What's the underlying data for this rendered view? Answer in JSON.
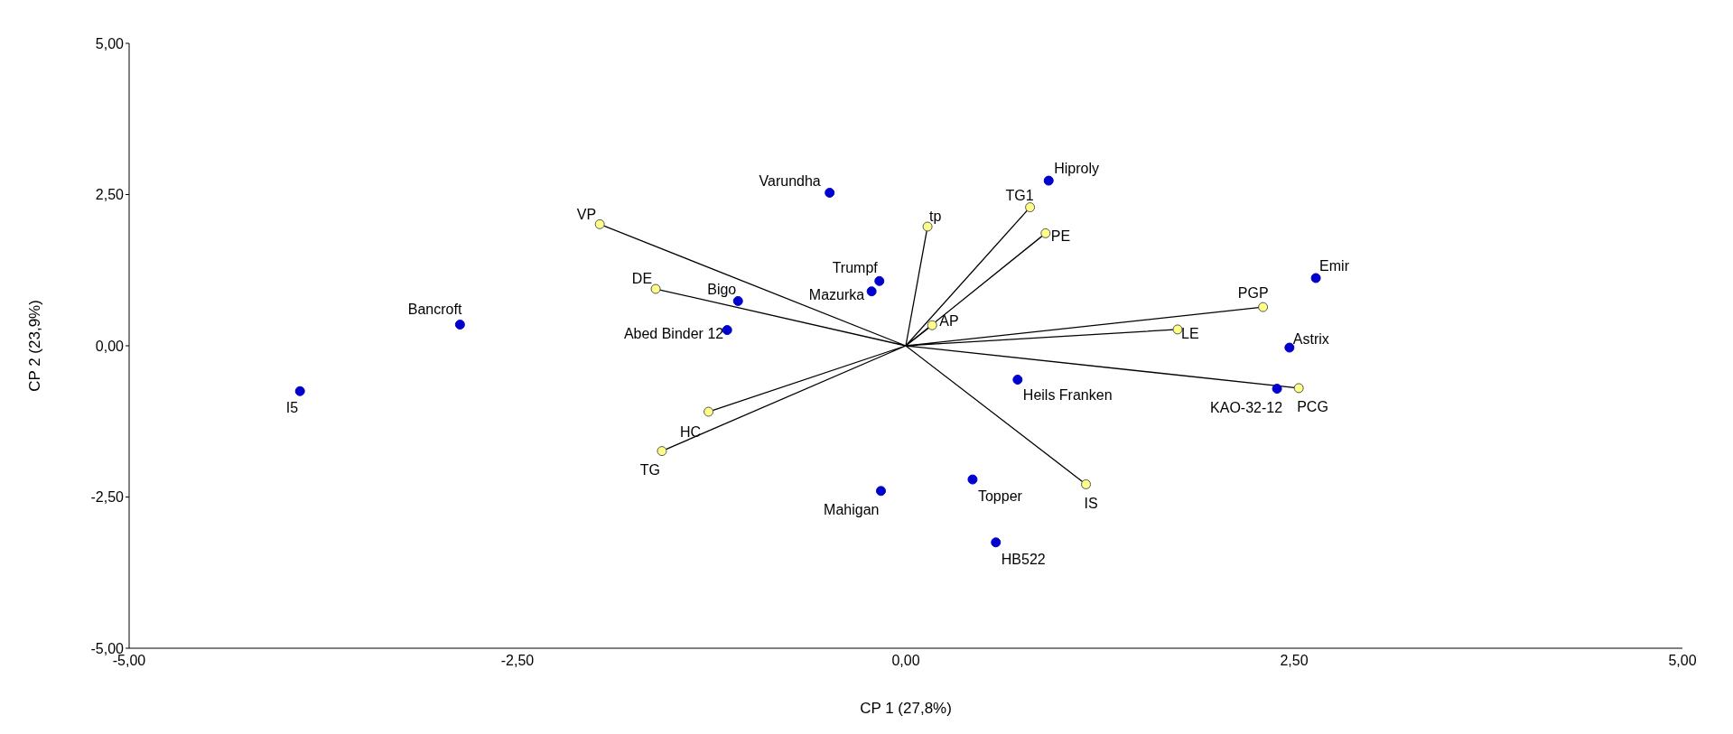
{
  "chart_data": {
    "type": "scatter",
    "xlabel": "CP 1 (27,8%)",
    "ylabel": "CP 2 (23,9%)",
    "marker": "circle",
    "xlim": [
      -5,
      5
    ],
    "ylim": [
      -5,
      5
    ],
    "xticks": [
      {
        "value": -5,
        "label": "-5,00"
      },
      {
        "value": -2.5,
        "label": "-2,50"
      },
      {
        "value": 0,
        "label": "0,00"
      },
      {
        "value": 2.5,
        "label": "2,50"
      },
      {
        "value": 5,
        "label": "5,00"
      }
    ],
    "yticks": [
      {
        "value": -5,
        "label": "-5,00"
      },
      {
        "value": -2.5,
        "label": "-2,50"
      },
      {
        "value": 0,
        "label": "0,00"
      },
      {
        "value": 2.5,
        "label": "2,50"
      },
      {
        "value": 5,
        "label": "5,00"
      }
    ],
    "series": [
      {
        "type": "line",
        "marker": "none",
        "color": "#000000",
        "x": [
          0,
          -1.97,
          0,
          -1.61,
          0,
          0.14,
          0,
          0.8,
          0,
          0.9,
          0,
          0.17,
          0,
          2.3,
          0,
          1.75,
          0,
          2.53,
          0,
          1.16,
          0,
          -1.27,
          0,
          -1.57
        ],
        "values": [
          0,
          2.01,
          0,
          0.94,
          0,
          1.97,
          0,
          2.29,
          0,
          1.86,
          0,
          0.34,
          0,
          0.64,
          0,
          0.27,
          0,
          -0.7,
          0,
          -2.29,
          0,
          -1.09,
          0,
          -1.74
        ]
      },
      {
        "type": "scatter",
        "color": "#0000cc",
        "x": [
          -0.49,
          0.92,
          -0.17,
          -0.22,
          -1.08,
          -1.15,
          -2.87,
          -3.9,
          2.64,
          2.47,
          0.72,
          2.39,
          0.43,
          0.58,
          -0.16
        ],
        "values": [
          2.53,
          2.73,
          1.07,
          0.9,
          0.74,
          0.26,
          0.35,
          -0.75,
          1.12,
          -0.03,
          -0.56,
          -0.71,
          -2.21,
          -3.25,
          -2.4
        ],
        "value_labels": [
          "Varundha",
          "Hiproly",
          "Trumpf",
          "Mazurka",
          "Bigo",
          "Abed Binder 12",
          "Bancroft",
          "I5",
          "Emir",
          "Astrix",
          "Heils Franken",
          "KAO-32-12",
          "Topper",
          "HB522",
          "Mahigan"
        ]
      },
      {
        "type": "scatter",
        "color": "#ffff88",
        "x": [
          -1.97,
          -1.61,
          0.14,
          0.8,
          0.9,
          0.17,
          2.3,
          1.75,
          2.53,
          1.16,
          -1.27,
          -1.57
        ],
        "values": [
          2.01,
          0.94,
          1.97,
          2.29,
          1.86,
          0.34,
          0.64,
          0.27,
          -0.7,
          -2.29,
          -1.09,
          -1.74
        ],
        "value_labels": [
          "VP",
          "DE",
          "tp",
          "TG1",
          "PE",
          "AP",
          "PGP",
          "LE",
          "PCG",
          "IS",
          "HC",
          "TG"
        ]
      }
    ]
  }
}
